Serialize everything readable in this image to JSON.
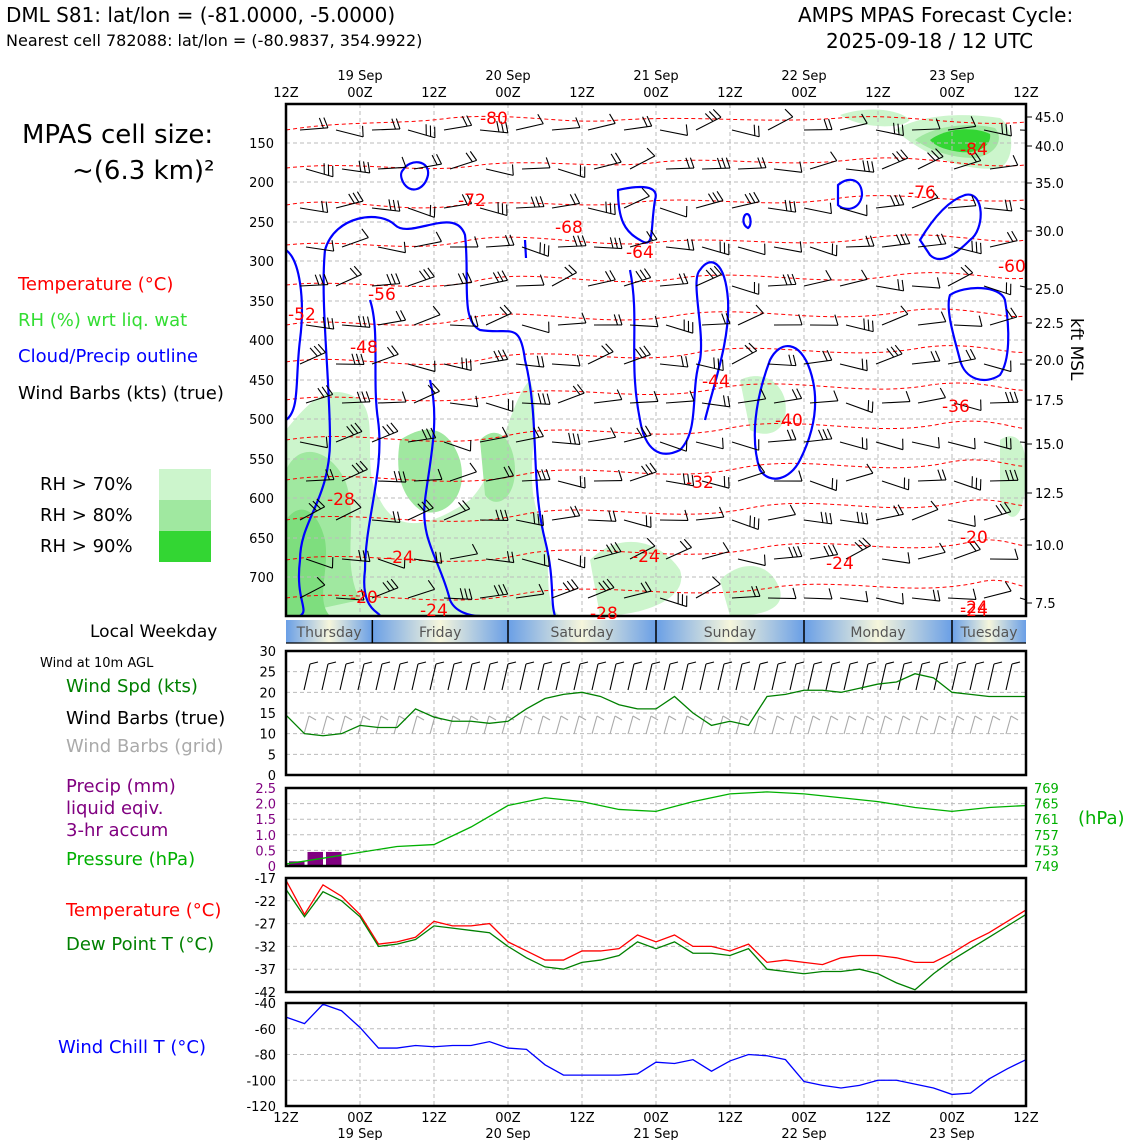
{
  "header": {
    "station_line": "DML S81: lat/lon = (-81.0000, -5.0000)",
    "cell_line": "Nearest cell 782088: lat/lon = (-80.9837, 354.9922)",
    "cycle_title": "AMPS MPAS Forecast Cycle:",
    "cycle_date": "2025-09-18 / 12 UTC"
  },
  "left_legend": {
    "cell_size_title": "MPAS cell size:",
    "cell_size_value": "~(6.3 km)²",
    "temperature": "Temperature (°C)",
    "rh": "RH (%) wrt liq. wat",
    "cloud": "Cloud/Precip outline",
    "wind": "Wind Barbs (kts) (true)",
    "rh70": "RH > 70%",
    "rh80": "RH > 80%",
    "rh90": "RH > 90%"
  },
  "colors": {
    "temperature": "#ff0000",
    "rh_label": "#33dd33",
    "cloud": "#0000ff",
    "rh70": "#ccf5cc",
    "rh80": "#a0e8a0",
    "rh90": "#33d633",
    "wind_speed": "#008000",
    "precip": "#800080",
    "pressure": "#00b000",
    "dewpoint": "#008000",
    "windchill": "#0000ff",
    "grid_barbs": "#aaaaaa"
  },
  "time_axis": {
    "top_labels": [
      "12Z",
      "00Z",
      "12Z",
      "00Z",
      "12Z",
      "00Z",
      "12Z",
      "00Z",
      "12Z",
      "00Z",
      "12Z"
    ],
    "date_labels": [
      "19 Sep",
      "20 Sep",
      "21 Sep",
      "22 Sep",
      "23 Sep"
    ]
  },
  "weekday": {
    "label": "Local Weekday",
    "days": [
      "Thursday",
      "Friday",
      "Saturday",
      "Sunday",
      "Monday",
      "Tuesday"
    ]
  },
  "sounding": {
    "pressure_ticks": [
      "150",
      "200",
      "250",
      "300",
      "350",
      "400",
      "450",
      "500",
      "550",
      "600",
      "650",
      "700"
    ],
    "height_ticks": [
      "45.0",
      "40.0",
      "35.0",
      "30.0",
      "25.0",
      "22.5",
      "20.0",
      "17.5",
      "15.0",
      "12.5",
      "10.0",
      "7.5"
    ],
    "height_axis_label": "kft MSL",
    "temp_labels": [
      "-80",
      "-84",
      "-72",
      "-68",
      "-64",
      "-76",
      "-60",
      "-56",
      "-52",
      "-48",
      "-44",
      "-40",
      "-36",
      "-32",
      "-28",
      "-24",
      "-24",
      "-24",
      "-20",
      "-20",
      "-24",
      "-28",
      "-24",
      "-24"
    ]
  },
  "wind_panel": {
    "title": "Wind at 10m AGL",
    "speed_label": "Wind Spd (kts)",
    "barbs_true": "Wind Barbs (true)",
    "barbs_grid": "Wind Barbs (grid)",
    "yticks": [
      "30",
      "25",
      "20",
      "15",
      "10",
      "5",
      "0"
    ]
  },
  "precip_panel": {
    "precip_label": "Precip (mm)",
    "liquid_label": "liquid eqiv.",
    "accum_label": "3-hr accum",
    "pressure_label": "Pressure (hPa)",
    "left_ticks": [
      "2.5",
      "2.0",
      "1.5",
      "1.0",
      "0.5",
      "0"
    ],
    "right_ticks": [
      "769",
      "765",
      "761",
      "757",
      "753",
      "749"
    ],
    "right_unit": "(hPa)"
  },
  "temp_panel": {
    "temp_label": "Temperature (°C)",
    "dew_label": "Dew Point T (°C)",
    "yticks": [
      "-17",
      "-22",
      "-27",
      "-32",
      "-37",
      "-42"
    ]
  },
  "chill_panel": {
    "label": "Wind Chill T (°C)",
    "yticks": [
      "-40",
      "-60",
      "-80",
      "-100",
      "-120"
    ]
  },
  "chart_data": [
    {
      "type": "line",
      "title": "Wind at 10m AGL",
      "x_hours": [
        0,
        3,
        6,
        9,
        12,
        15,
        18,
        21,
        24,
        27,
        30,
        33,
        36,
        39,
        42,
        45,
        48,
        51,
        54,
        57,
        60,
        63,
        66,
        69,
        72,
        75,
        78,
        81,
        84,
        87,
        90,
        93,
        96,
        99,
        102,
        105,
        108,
        111,
        114,
        117,
        120
      ],
      "series": [
        {
          "name": "Wind Spd (kts)",
          "values": [
            14.5,
            10,
            9.5,
            10,
            12,
            11.5,
            11.5,
            16,
            14,
            13,
            13,
            12.5,
            13,
            16,
            18.5,
            19.5,
            20,
            19,
            17,
            16,
            16,
            19,
            15,
            12,
            13,
            12,
            19,
            19.5,
            20.5,
            20.5,
            20,
            21,
            22,
            22.5,
            24.5,
            23.5,
            20,
            19.5,
            19,
            19,
            19
          ]
        }
      ],
      "ylim": [
        0,
        30
      ]
    },
    {
      "type": "bar",
      "title": "Precip (mm) liquid eqiv. 3-hr accum",
      "x_hours": [
        3,
        6,
        9
      ],
      "values": [
        0.15,
        0.45,
        0.45
      ],
      "ylim": [
        0,
        2.5
      ]
    },
    {
      "type": "line",
      "title": "Pressure (hPa)",
      "x_hours": [
        0,
        6,
        12,
        18,
        24,
        30,
        36,
        42,
        48,
        54,
        60,
        66,
        72,
        78,
        84,
        90,
        96,
        102,
        108,
        114,
        120
      ],
      "series": [
        {
          "name": "Pressure (hPa)",
          "values": [
            749.5,
            751,
            752.5,
            754,
            754.5,
            759,
            764.5,
            766.5,
            765.5,
            763.5,
            763,
            765.5,
            767.5,
            768,
            767.5,
            766.5,
            765.5,
            764,
            763,
            764,
            764.5
          ]
        }
      ],
      "ylim": [
        749,
        769
      ]
    },
    {
      "type": "line",
      "title": "Temperature / Dew Point",
      "x_hours": [
        0,
        3,
        6,
        9,
        12,
        15,
        18,
        21,
        24,
        27,
        30,
        33,
        36,
        39,
        42,
        45,
        48,
        51,
        54,
        57,
        60,
        63,
        66,
        69,
        72,
        75,
        78,
        81,
        84,
        87,
        90,
        93,
        96,
        99,
        102,
        105,
        108,
        111,
        114,
        117,
        120
      ],
      "series": [
        {
          "name": "Temperature (°C)",
          "values": [
            -17.5,
            -25,
            -18.5,
            -21,
            -25,
            -31.5,
            -31,
            -30,
            -26.5,
            -27.5,
            -27.5,
            -27,
            -31,
            -33,
            -35,
            -35,
            -33,
            -33,
            -32.5,
            -29.5,
            -31,
            -29.5,
            -32,
            -32,
            -33,
            -31.5,
            -35.5,
            -35,
            -35.5,
            -36,
            -34.5,
            -34,
            -34,
            -34.5,
            -35.5,
            -35.5,
            -33.5,
            -31,
            -29,
            -26.5,
            -24
          ]
        },
        {
          "name": "Dew Point T (°C)",
          "values": [
            -19.5,
            -25.5,
            -20,
            -22,
            -25.5,
            -32,
            -31.5,
            -30.5,
            -27.5,
            -28,
            -28.5,
            -29,
            -32,
            -34.5,
            -36.5,
            -37,
            -35.5,
            -35,
            -34,
            -31,
            -32.5,
            -31,
            -33.5,
            -33.5,
            -34,
            -32.5,
            -37,
            -37.5,
            -38,
            -37.5,
            -37.5,
            -37,
            -38,
            -40,
            -41.5,
            -38,
            -35,
            -32.5,
            -30,
            -27.5,
            -25
          ]
        }
      ],
      "ylim": [
        -42,
        -17
      ]
    },
    {
      "type": "line",
      "title": "Wind Chill T (°C)",
      "x_hours": [
        0,
        3,
        6,
        9,
        12,
        15,
        18,
        21,
        24,
        27,
        30,
        33,
        36,
        39,
        42,
        45,
        48,
        51,
        54,
        57,
        60,
        63,
        66,
        69,
        72,
        75,
        78,
        81,
        84,
        87,
        90,
        93,
        96,
        99,
        102,
        105,
        108,
        111,
        114,
        117,
        120
      ],
      "series": [
        {
          "name": "Wind Chill T (°C)",
          "values": [
            -51,
            -56,
            -41,
            -46,
            -59,
            -75,
            -75,
            -73,
            -74,
            -73,
            -73,
            -70,
            -75,
            -76,
            -88,
            -96,
            -96,
            -96,
            -96,
            -95,
            -86,
            -87,
            -84,
            -93,
            -85,
            -80,
            -81,
            -84,
            -101,
            -104,
            -106,
            -104,
            -100,
            -100,
            -103,
            -106,
            -111,
            -110,
            -99,
            -91,
            -84
          ]
        }
      ],
      "ylim": [
        -120,
        -40
      ]
    }
  ]
}
